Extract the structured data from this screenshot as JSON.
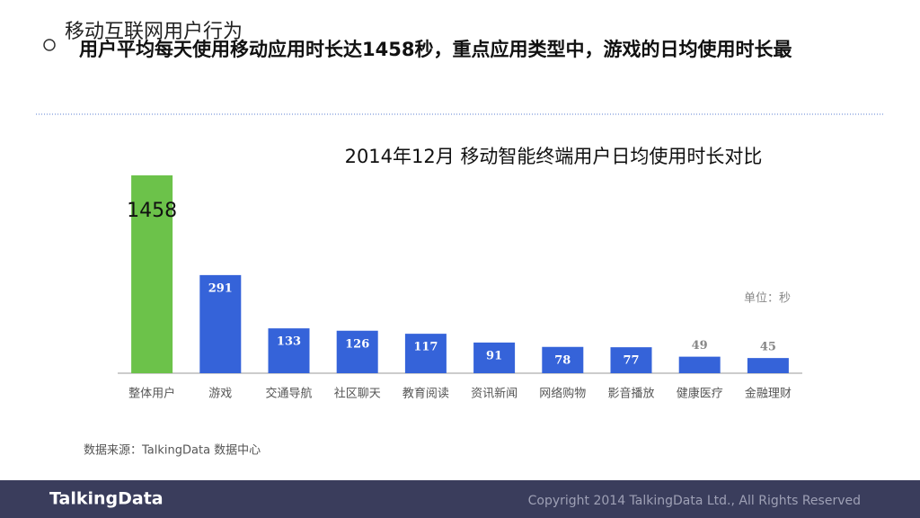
{
  "header": {
    "title": "移动互联网用户行为",
    "subtitle": "用户平均每天使用移动应用时长达1458秒，重点应用类型中，游戏的日均使用时长最"
  },
  "chart_data": {
    "type": "bar",
    "title": "2014年12月 移动智能终端用户日均使用时长对比",
    "categories": [
      "整体用户",
      "游戏",
      "交通导航",
      "社区聊天",
      "教育阅读",
      "资讯新闻",
      "网络购物",
      "影音播放",
      "健康医疗",
      "金融理财"
    ],
    "values": [
      1458,
      291,
      133,
      126,
      117,
      91,
      78,
      77,
      49,
      45
    ],
    "colors": [
      "#6cc24a",
      "#3563d9",
      "#3563d9",
      "#3563d9",
      "#3563d9",
      "#3563d9",
      "#3563d9",
      "#3563d9",
      "#3563d9",
      "#3563d9"
    ],
    "unit_note": "单位：秒",
    "source": "数据来源：TalkingData 数据中心"
  },
  "footer": {
    "logo": "TalkingData",
    "copyright": "Copyright 2014 TalkingData Ltd., All Rights Reserved"
  }
}
